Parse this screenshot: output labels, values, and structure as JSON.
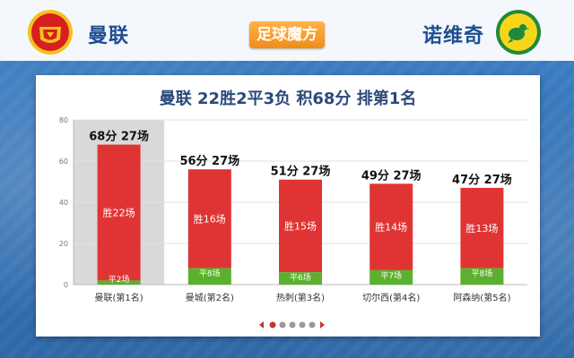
{
  "header": {
    "home_team": "曼联",
    "away_team": "诺维奇",
    "brand": "足球魔方"
  },
  "colors": {
    "win": "#e03434",
    "draw": "#5bb12d",
    "highlight": "#d9d9d9",
    "title": "#2b4a7a"
  },
  "icons": {
    "home_crest": "manchester-united-crest-icon",
    "away_crest": "norwich-city-crest-icon"
  },
  "chart_data": {
    "type": "bar",
    "title": "曼联 22胜2平3负 积68分 排第1名",
    "ylim": [
      0,
      80
    ],
    "yticks": [
      0,
      20,
      40,
      60,
      80
    ],
    "grid": true,
    "categories": [
      "曼联(第1名)",
      "曼城(第2名)",
      "热刺(第3名)",
      "切尔西(第4名)",
      "阿森纳(第5名)"
    ],
    "series": [
      {
        "values": [
          68,
          56,
          51,
          49,
          47
        ]
      }
    ],
    "top_labels": [
      "68分 27场",
      "56分 27场",
      "51分 27场",
      "49分 27场",
      "47分 27场"
    ],
    "win_labels": [
      "胜22场",
      "胜16场",
      "胜15场",
      "胜14场",
      "胜13场"
    ],
    "draw_values": [
      2,
      8,
      6,
      7,
      8
    ],
    "draw_labels": [
      "平2场",
      "平8场",
      "平6场",
      "平7场",
      "平8场"
    ],
    "highlight_index": 0
  },
  "pager": {
    "current": 0,
    "count": 5
  }
}
